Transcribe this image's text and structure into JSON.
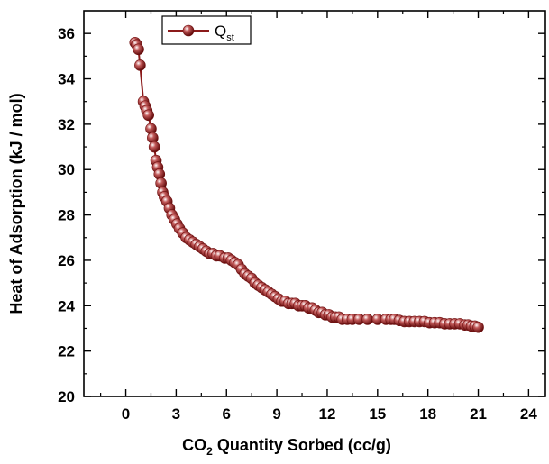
{
  "chart_data": {
    "type": "scatter",
    "title": "",
    "xlabel": {
      "prefix": "CO",
      "sub": "2",
      "suffix": " Quantity Sorbed (cc/g)"
    },
    "ylabel": "Heat of Adsorption  (kJ / mol)",
    "xlim": [
      -2.5,
      25
    ],
    "ylim": [
      20,
      37
    ],
    "xticks": [
      0,
      3,
      6,
      9,
      12,
      15,
      18,
      21,
      24
    ],
    "xtick_labels": [
      "0",
      "3",
      "6",
      "9",
      "12",
      "15",
      "18",
      "21",
      "24"
    ],
    "yticks": [
      20,
      22,
      24,
      26,
      28,
      30,
      32,
      34,
      36
    ],
    "ytick_labels": [
      "20",
      "22",
      "24",
      "26",
      "28",
      "30",
      "32",
      "34",
      "36"
    ],
    "grid": false,
    "legend_position": "top-left",
    "series": [
      {
        "name": {
          "base": "Q",
          "sub": "st"
        },
        "color": "#8b1a1a",
        "marker": "sphere",
        "connected": true,
        "x": [
          0.55,
          0.65,
          0.75,
          0.85,
          1.05,
          1.15,
          1.25,
          1.35,
          1.5,
          1.6,
          1.7,
          1.8,
          1.9,
          2.0,
          2.1,
          2.2,
          2.3,
          2.45,
          2.6,
          2.75,
          2.9,
          3.05,
          3.2,
          3.4,
          3.6,
          3.8,
          4.0,
          4.2,
          4.4,
          4.6,
          4.8,
          5.0,
          5.2,
          5.4,
          5.6,
          5.9,
          6.1,
          6.3,
          6.5,
          6.7,
          6.9,
          7.1,
          7.3,
          7.5,
          7.7,
          7.9,
          8.1,
          8.3,
          8.5,
          8.7,
          8.9,
          9.1,
          9.3,
          9.5,
          9.7,
          9.9,
          10.1,
          10.3,
          10.5,
          10.7,
          10.9,
          11.1,
          11.3,
          11.5,
          11.7,
          11.9,
          12.1,
          12.3,
          12.5,
          12.7,
          12.9,
          13.2,
          13.5,
          13.9,
          14.4,
          15.0,
          15.5,
          15.8,
          16.0,
          16.3,
          16.6,
          16.9,
          17.2,
          17.5,
          17.8,
          18.1,
          18.4,
          18.7,
          19.0,
          19.3,
          19.6,
          19.9,
          20.2,
          20.4,
          20.6,
          20.8,
          21.0
        ],
        "y": [
          35.6,
          35.5,
          35.3,
          34.6,
          33.0,
          32.8,
          32.6,
          32.4,
          31.8,
          31.4,
          31.0,
          30.4,
          30.1,
          29.8,
          29.4,
          29.0,
          28.8,
          28.6,
          28.3,
          28.0,
          27.8,
          27.6,
          27.4,
          27.2,
          27.0,
          26.9,
          26.8,
          26.7,
          26.6,
          26.5,
          26.4,
          26.3,
          26.3,
          26.2,
          26.2,
          26.1,
          26.1,
          26.0,
          25.9,
          25.8,
          25.6,
          25.4,
          25.3,
          25.2,
          25.0,
          24.9,
          24.8,
          24.7,
          24.6,
          24.5,
          24.4,
          24.3,
          24.2,
          24.2,
          24.1,
          24.1,
          24.1,
          24.0,
          24.0,
          24.0,
          23.9,
          23.9,
          23.8,
          23.7,
          23.7,
          23.6,
          23.6,
          23.5,
          23.5,
          23.5,
          23.4,
          23.4,
          23.4,
          23.4,
          23.4,
          23.4,
          23.4,
          23.4,
          23.4,
          23.35,
          23.3,
          23.3,
          23.3,
          23.3,
          23.3,
          23.25,
          23.25,
          23.25,
          23.2,
          23.2,
          23.2,
          23.2,
          23.15,
          23.15,
          23.1,
          23.1,
          23.05
        ]
      }
    ]
  }
}
